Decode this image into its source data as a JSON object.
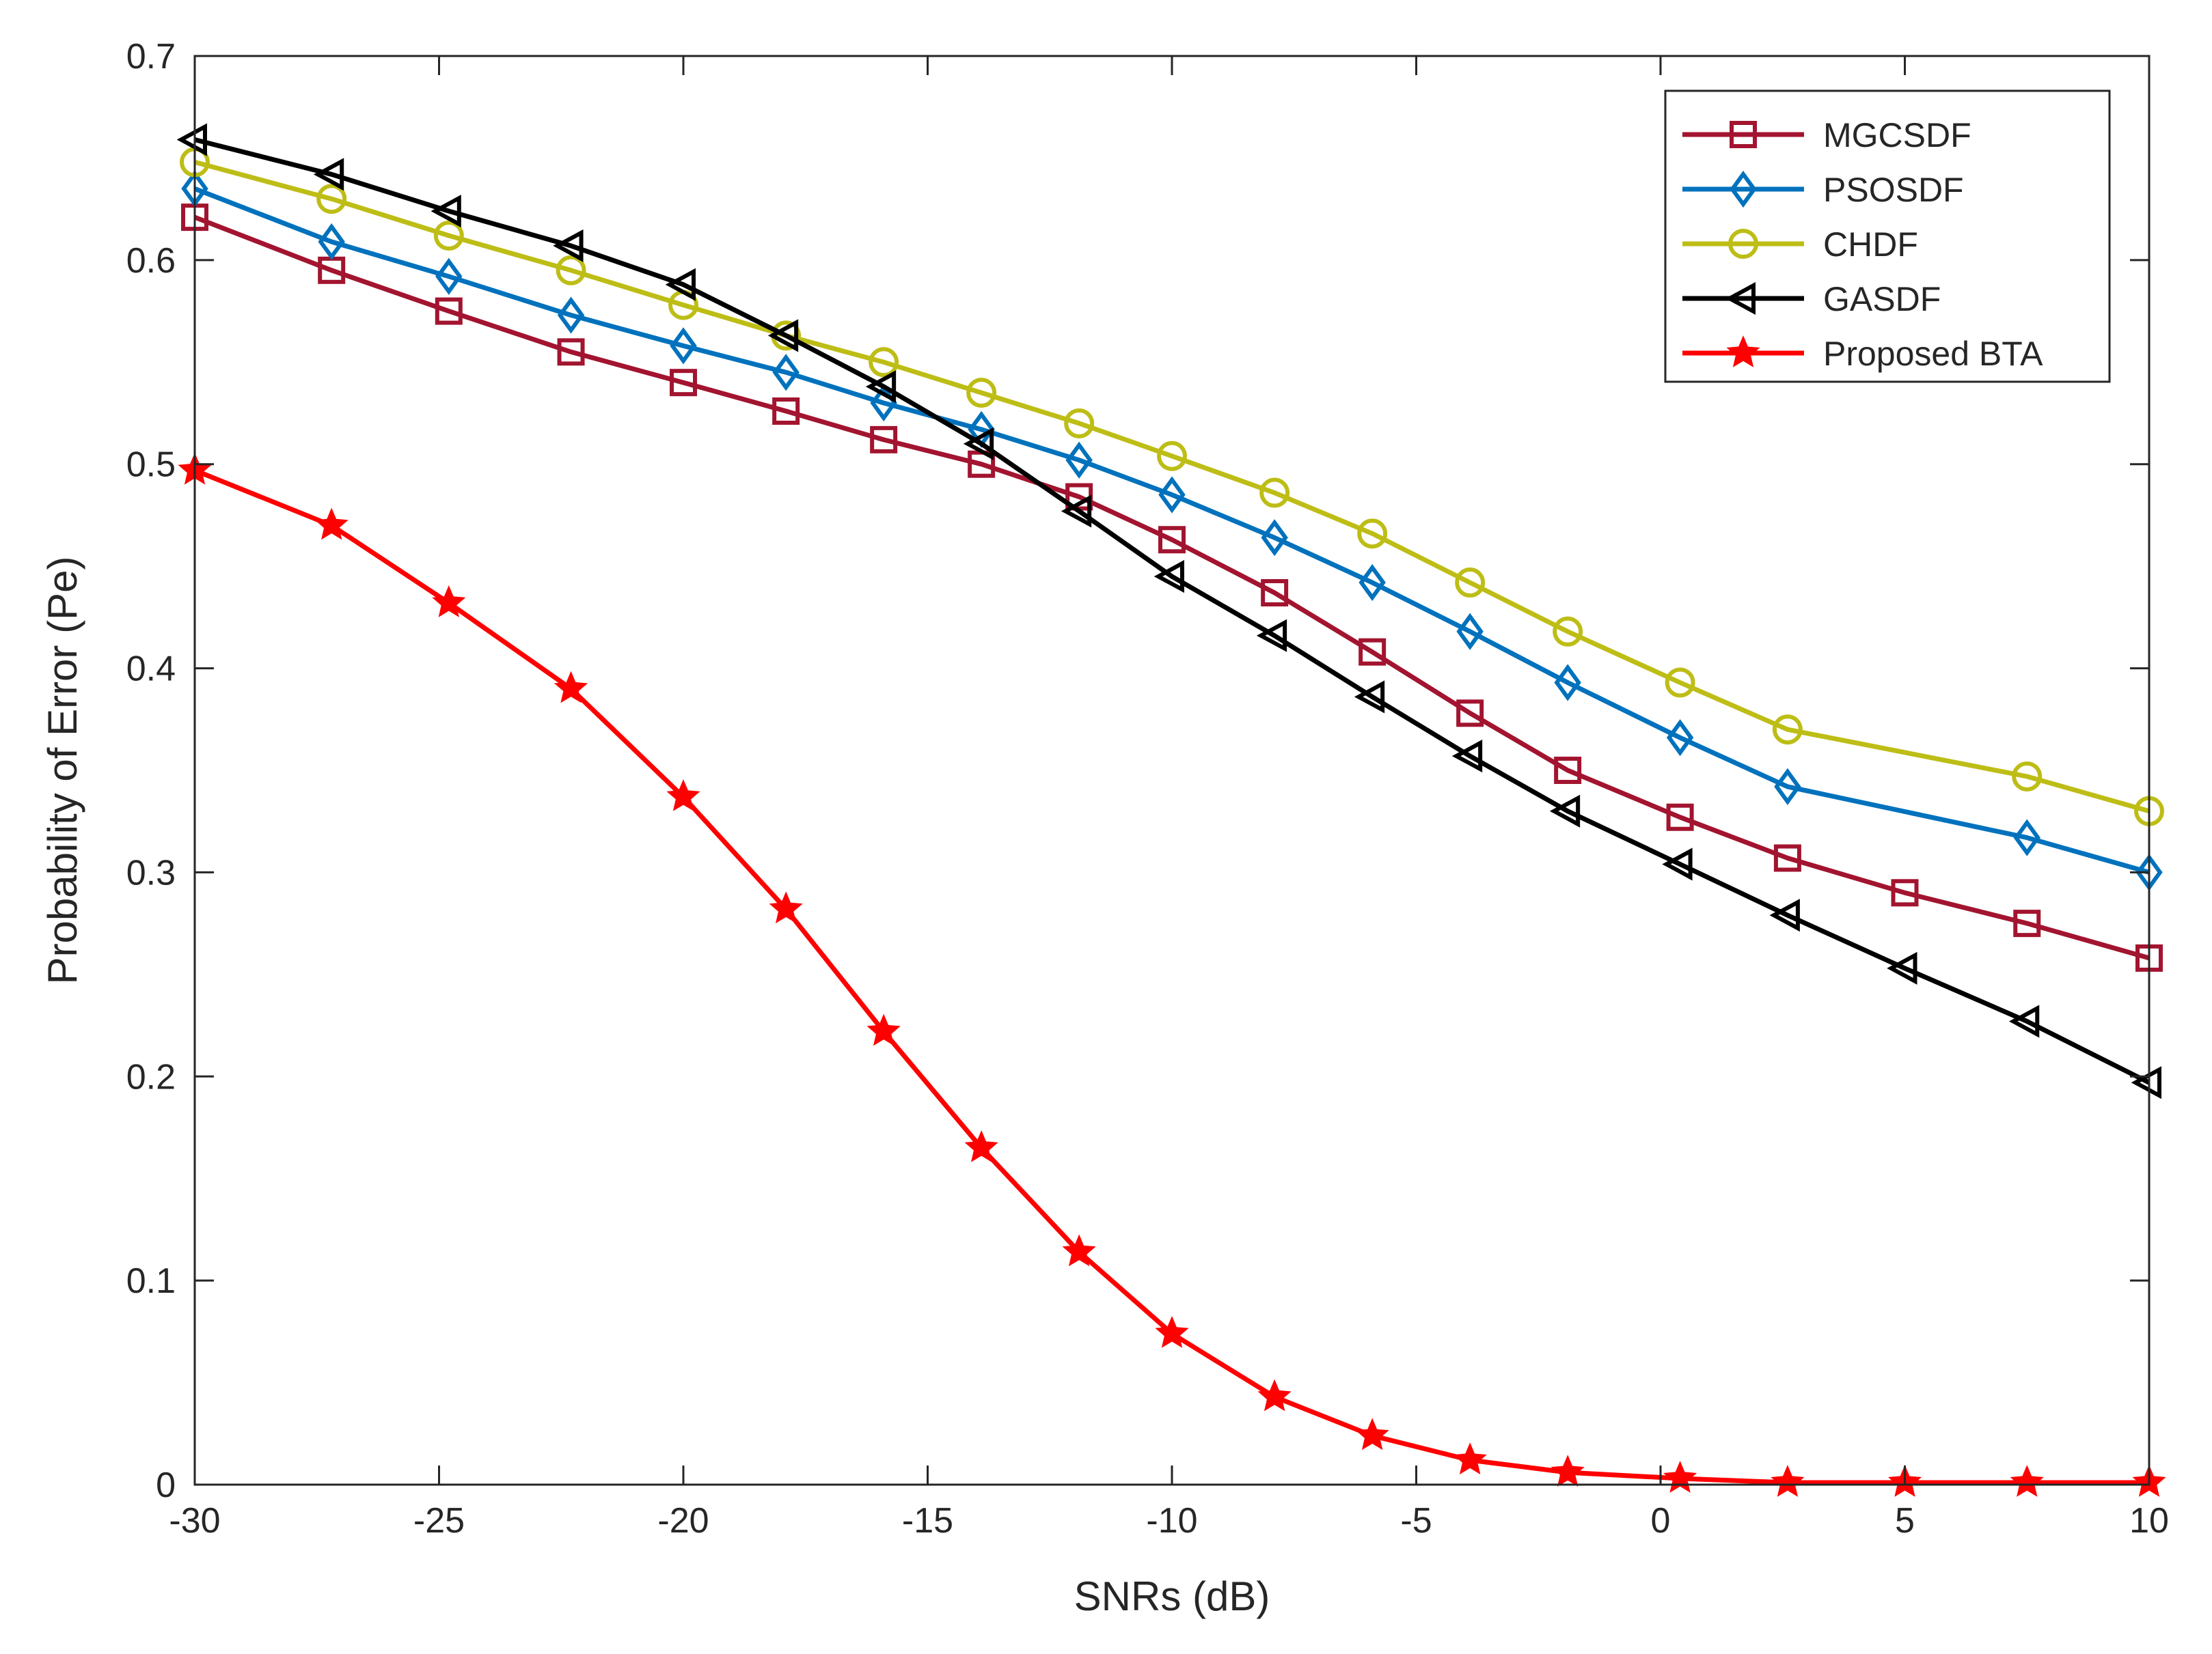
{
  "chart_data": {
    "type": "line",
    "title": "",
    "xlabel": "SNRs (dB)",
    "ylabel": "Probability of Error (Pe)",
    "xlim": [
      -30,
      10
    ],
    "ylim": [
      0,
      0.7
    ],
    "xticks": [
      -30,
      -25,
      -20,
      -15,
      -10,
      -5,
      0,
      5,
      10
    ],
    "xtick_labels": [
      "-30",
      "-25",
      "-20",
      "-15",
      "-10",
      "-5",
      "0",
      "5",
      "10"
    ],
    "yticks": [
      0,
      0.1,
      0.2,
      0.3,
      0.4,
      0.5,
      0.6,
      0.7
    ],
    "ytick_labels": [
      "0",
      "0.1",
      "0.2",
      "0.3",
      "0.4",
      "0.5",
      "0.6",
      "0.7"
    ],
    "grid": false,
    "legend_position": "top-right",
    "series": [
      {
        "name": "MGCSDF",
        "color": "#A2142F",
        "marker": "square",
        "x": [
          -30,
          -27.2,
          -24.8,
          -22.3,
          -20,
          -17.9,
          -15.9,
          -13.9,
          -11.9,
          -10,
          -7.9,
          -5.9,
          -3.9,
          -1.9,
          0.4,
          2.6,
          5,
          7.5,
          10
        ],
        "y": [
          0.621,
          0.595,
          0.575,
          0.555,
          0.54,
          0.526,
          0.512,
          0.5,
          0.484,
          0.463,
          0.437,
          0.408,
          0.378,
          0.35,
          0.327,
          0.307,
          0.29,
          0.275,
          0.258
        ]
      },
      {
        "name": "PSOSDF",
        "color": "#0072BD",
        "marker": "diamond",
        "x": [
          -30,
          -27.2,
          -24.8,
          -22.3,
          -20,
          -17.9,
          -15.9,
          -13.9,
          -11.9,
          -10,
          -7.9,
          -5.9,
          -3.9,
          -1.9,
          0.4,
          2.6,
          7.5,
          10
        ],
        "y": [
          0.635,
          0.609,
          0.592,
          0.573,
          0.558,
          0.545,
          0.53,
          0.517,
          0.502,
          0.485,
          0.464,
          0.442,
          0.418,
          0.393,
          0.366,
          0.342,
          0.317,
          0.3
        ]
      },
      {
        "name": "CHDF",
        "color": "#BDBD16",
        "marker": "circle",
        "x": [
          -30,
          -27.2,
          -24.8,
          -22.3,
          -20,
          -17.9,
          -15.9,
          -13.9,
          -11.9,
          -10,
          -7.9,
          -5.9,
          -3.9,
          -1.9,
          0.4,
          2.6,
          7.5,
          10
        ],
        "y": [
          0.648,
          0.63,
          0.612,
          0.595,
          0.578,
          0.563,
          0.55,
          0.535,
          0.52,
          0.504,
          0.486,
          0.466,
          0.442,
          0.418,
          0.393,
          0.37,
          0.347,
          0.33
        ]
      },
      {
        "name": "GASDF",
        "color": "#000000",
        "marker": "triangle-left",
        "x": [
          -30,
          -27.2,
          -24.8,
          -22.3,
          -20,
          -17.9,
          -15.9,
          -13.9,
          -11.9,
          -10,
          -7.9,
          -5.9,
          -3.9,
          -1.9,
          0.4,
          2.6,
          5,
          7.5,
          10
        ],
        "y": [
          0.659,
          0.642,
          0.624,
          0.607,
          0.588,
          0.563,
          0.538,
          0.51,
          0.477,
          0.445,
          0.416,
          0.386,
          0.357,
          0.33,
          0.304,
          0.279,
          0.253,
          0.227,
          0.197
        ]
      },
      {
        "name": "Proposed BTA",
        "color": "#FF0000",
        "marker": "star",
        "x": [
          -30,
          -27.2,
          -24.8,
          -22.3,
          -20,
          -17.9,
          -15.9,
          -13.9,
          -11.9,
          -10,
          -7.9,
          -5.9,
          -3.9,
          -1.9,
          0.4,
          2.6,
          5,
          7.5,
          10
        ],
        "y": [
          0.497,
          0.47,
          0.432,
          0.39,
          0.337,
          0.282,
          0.222,
          0.165,
          0.114,
          0.074,
          0.043,
          0.024,
          0.012,
          0.006,
          0.003,
          0.001,
          0.001,
          0.001,
          0.001
        ]
      }
    ]
  }
}
